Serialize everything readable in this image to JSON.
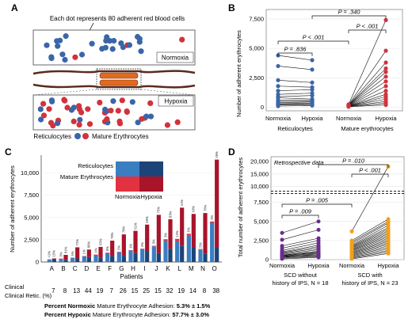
{
  "panels": {
    "A": {
      "letter": "A",
      "legend_note": "Each dot represents 80 adherent red blood cells",
      "normoxia_label": "Normoxia",
      "hypoxia_label": "Hypoxia",
      "reticulocytes_label": "Reticulocytes",
      "mature_label": "Mature Erythrocytes",
      "colors": {
        "reticulocyte": "#3a66a8",
        "mature": "#d2323c"
      }
    },
    "B": {
      "letter": "B",
      "ylabel": "Number of adherent erythrocytes",
      "yticks": [
        0,
        2500,
        5000,
        7500
      ],
      "ylim": [
        -300,
        8300
      ],
      "xtick_labels": [
        "Normoxia",
        "Hypoxia",
        "Normoxia",
        "Hypoxia"
      ],
      "group_labels": [
        "Reticulocytes",
        "Mature erythrocytes"
      ],
      "p_values": [
        "P = .836",
        "P < .001",
        "P < .001",
        "P = .340"
      ],
      "reticulocytes": {
        "normoxia": [
          4400,
          3500,
          2300,
          1800,
          1400,
          1100,
          900,
          800,
          600,
          500,
          400,
          300,
          250,
          200,
          100
        ],
        "hypoxia": [
          4000,
          3200,
          2100,
          1700,
          1500,
          1200,
          1000,
          700,
          600,
          500,
          450,
          350,
          300,
          200,
          150
        ]
      },
      "mature": {
        "normoxia": [
          250,
          220,
          200,
          180,
          160,
          150,
          130,
          120,
          110,
          100,
          90,
          80,
          70,
          60,
          50
        ],
        "hypoxia": [
          7400,
          4800,
          3800,
          3300,
          3000,
          2600,
          2200,
          1800,
          1400,
          1100,
          900,
          700,
          500,
          350,
          200
        ]
      },
      "colors": {
        "reticulocyte": "#3a66a8",
        "mature": "#d2323c"
      }
    },
    "C": {
      "letter": "C",
      "ylabel": "Number of adherent erythrocytes",
      "xlabel": "Patients",
      "yticks": [
        0,
        2500,
        5000,
        7500,
        10000
      ],
      "ylim": [
        0,
        12000
      ],
      "legend": {
        "reticulocytes": "Reticulocytes",
        "mature": "Mature Erythrocytes",
        "normoxia": "Normoxia",
        "hypoxia": "Hypoxia"
      },
      "patients": [
        "A",
        "B",
        "C",
        "D",
        "E",
        "F",
        "G",
        "H",
        "I",
        "J",
        "K",
        "L",
        "M",
        "N",
        "O"
      ],
      "clinical_retic_label": "Clinical Retic. (%)",
      "clinical_retic": [
        "7",
        "8",
        "13",
        "44",
        "19",
        "7",
        "26",
        "15",
        "25",
        "15",
        "32",
        "19",
        "14",
        "8",
        "38"
      ],
      "normoxia_ret": [
        300,
        350,
        450,
        650,
        800,
        1000,
        1100,
        1300,
        1450,
        1750,
        2400,
        2350,
        3000,
        1400,
        4400
      ],
      "normoxia_mat": [
        0,
        40,
        40,
        30,
        40,
        60,
        50,
        40,
        50,
        70,
        160,
        250,
        170,
        60,
        150
      ],
      "hypoxia_ret": [
        350,
        250,
        400,
        550,
        500,
        700,
        700,
        1000,
        1200,
        1000,
        1500,
        1800,
        1600,
        900,
        1600
      ],
      "hypoxia_mat": [
        50,
        550,
        1250,
        850,
        1200,
        1700,
        2400,
        2500,
        3000,
        4300,
        3300,
        4300,
        3800,
        4600,
        9900
      ],
      "normoxia_pct": [
        "<1%",
        "3%",
        "5%",
        "1%",
        "1%",
        "8%",
        "2%",
        "1%",
        "4%",
        "3%",
        "3%",
        "12%",
        "6%",
        "5%",
        "2%"
      ],
      "hypoxia_pct": [
        "15%",
        "81%",
        "72%",
        "86%",
        "55%",
        "78%",
        "78%",
        "61%",
        "69%",
        "75%",
        "83%",
        "41%",
        "63%",
        "76%",
        "49%"
      ],
      "percent_normoxic_label": "Percent Normoxic",
      "percent_normoxic_rest": "Mature Erythrocyte Adhesion:",
      "percent_normoxic_value": "5.3% ± 1.5%",
      "percent_hypoxic_label": "Percent Hypoxic",
      "percent_hypoxic_rest": "Mature Erythrocyte Adhesion:",
      "percent_hypoxic_value": "57.7% ± 3.0%",
      "colors": {
        "norm_ret": "#3a7ec2",
        "norm_mat": "#e2313f",
        "hyp_ret": "#1d4478",
        "hyp_mat": "#a8142a"
      }
    },
    "D": {
      "letter": "D",
      "ylabel": "Total number of adherent erythrocytes",
      "yticks_low": [
        0,
        2500,
        5000,
        7500
      ],
      "yticks_high": [
        10000,
        15000,
        20000
      ],
      "break_at": 8500,
      "retro_label": "Retrospective data",
      "xtick_labels": [
        "Normoxia",
        "Hypoxia",
        "Normoxia",
        "Hypoxia"
      ],
      "group_labels": [
        "SCD without history of IPS, N = 18",
        "SCD with history of IPS, N = 23"
      ],
      "p_values": [
        "P = .009",
        "P = .005",
        "P < .001",
        "P = .010"
      ],
      "no_ips": {
        "normoxia": [
          3500,
          2600,
          1800,
          1500,
          1200,
          1000,
          900,
          800,
          700,
          600,
          550,
          500,
          450,
          400,
          350,
          300,
          200,
          100
        ],
        "hypoxia": [
          5000,
          3900,
          2800,
          2500,
          2200,
          1900,
          1700,
          1500,
          1300,
          1100,
          1000,
          900,
          800,
          700,
          600,
          500,
          400,
          300
        ]
      },
      "ips": {
        "normoxia": [
          3700,
          2500,
          2300,
          2100,
          1900,
          1800,
          1700,
          1600,
          1500,
          1400,
          1300,
          1200,
          1100,
          1000,
          900,
          800,
          700,
          600,
          500,
          400,
          300,
          200,
          100
        ],
        "hypoxia": [
          18000,
          5300,
          5000,
          4800,
          4500,
          4200,
          4000,
          3800,
          3600,
          3400,
          3200,
          3000,
          2800,
          2600,
          2400,
          2200,
          2000,
          1800,
          1600,
          1400,
          1200,
          1000,
          800
        ]
      },
      "colors": {
        "no_ips": "#6b2c91",
        "ips": "#f2a016"
      }
    }
  }
}
